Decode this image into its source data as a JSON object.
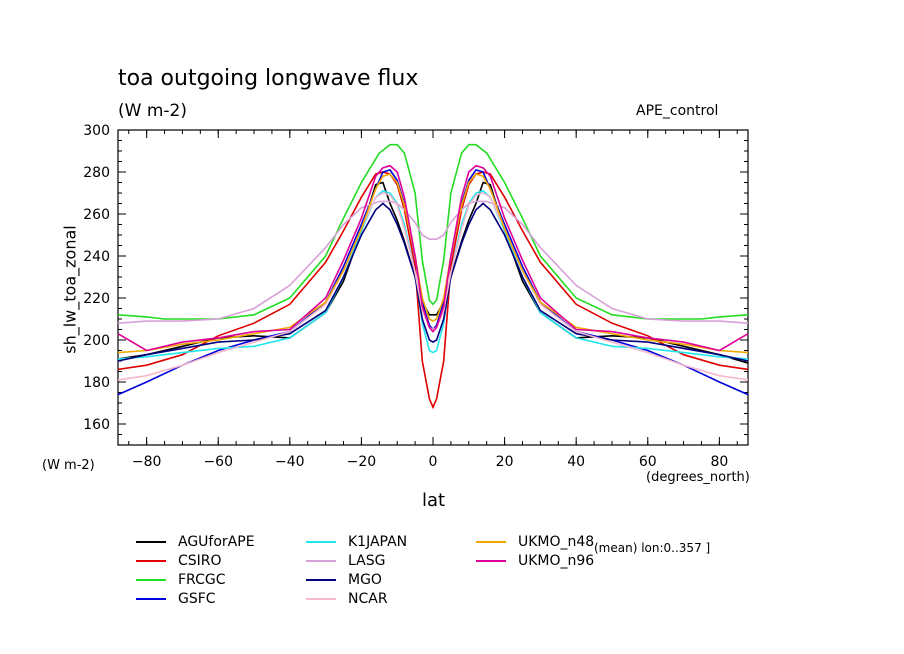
{
  "chart_data": {
    "type": "line",
    "title": "toa outgoing longwave flux",
    "subtitle": "(W m-2)",
    "run_label": "APE_control",
    "ylabel": "sh_lw_toa_zonal",
    "xlabel": "lat",
    "x_units": "(degrees_north)",
    "y_units_left": "(W m-2)",
    "note": "(mean) lon:0..357 ]",
    "xlim": [
      -88,
      88
    ],
    "ylim": [
      150,
      300
    ],
    "x_ticks": [
      -80,
      -60,
      -40,
      -20,
      0,
      20,
      40,
      60,
      80
    ],
    "y_ticks": [
      160,
      180,
      200,
      220,
      240,
      260,
      280,
      300
    ],
    "x_tick_labels": [
      "−80",
      "−60",
      "−40",
      "−20",
      "0",
      "20",
      "40",
      "60",
      "80"
    ],
    "y_tick_labels": [
      "160",
      "180",
      "200",
      "220",
      "240",
      "260",
      "280",
      "300"
    ],
    "grid": false,
    "legend_position": "bottom",
    "series": [
      {
        "name": "AGUforAPE",
        "color": "#000000",
        "x": [
          -88,
          -80,
          -70,
          -60,
          -50,
          -40,
          -30,
          -25,
          -20,
          -16,
          -14,
          -12,
          -10,
          -8,
          -5,
          -3,
          -1,
          0,
          1,
          3,
          5,
          8,
          10,
          12,
          14,
          16,
          20,
          25,
          30,
          40,
          50,
          60,
          70,
          80,
          88
        ],
        "y": [
          191,
          193,
          197,
          201,
          202,
          201,
          213,
          228,
          252,
          274,
          275,
          265,
          257,
          247,
          230,
          218,
          212,
          212,
          212,
          218,
          230,
          247,
          257,
          265,
          275,
          274,
          252,
          228,
          213,
          201,
          202,
          201,
          197,
          193,
          189
        ]
      },
      {
        "name": "CSIRO",
        "color": "#e00000",
        "x": [
          -88,
          -80,
          -70,
          -60,
          -50,
          -40,
          -30,
          -25,
          -20,
          -16,
          -14,
          -12,
          -10,
          -8,
          -5,
          -3,
          -1,
          0,
          1,
          3,
          5,
          8,
          10,
          12,
          14,
          16,
          20,
          25,
          30,
          40,
          50,
          60,
          70,
          80,
          88
        ],
        "y": [
          186,
          188,
          193,
          202,
          208,
          217,
          237,
          252,
          268,
          279,
          280,
          279,
          274,
          262,
          235,
          190,
          172,
          168,
          172,
          190,
          235,
          262,
          274,
          279,
          280,
          279,
          268,
          252,
          237,
          217,
          208,
          202,
          193,
          188,
          186
        ]
      },
      {
        "name": "FRCGC",
        "color": "#22dd22",
        "x": [
          -88,
          -80,
          -75,
          -70,
          -60,
          -50,
          -40,
          -30,
          -25,
          -20,
          -15,
          -12,
          -10,
          -8,
          -5,
          -3,
          -1,
          0,
          1,
          3,
          5,
          8,
          10,
          12,
          15,
          20,
          25,
          30,
          40,
          50,
          60,
          70,
          75,
          80,
          88
        ],
        "y": [
          212,
          211,
          210,
          210,
          210,
          212,
          220,
          240,
          258,
          275,
          289,
          293,
          293,
          289,
          270,
          238,
          219,
          217,
          219,
          238,
          270,
          289,
          293,
          293,
          289,
          275,
          258,
          240,
          220,
          212,
          210,
          210,
          210,
          211,
          212
        ]
      },
      {
        "name": "GSFC",
        "color": "#0000dd",
        "x": [
          -88,
          -80,
          -70,
          -60,
          -50,
          -40,
          -30,
          -25,
          -20,
          -16,
          -14,
          -12,
          -10,
          -8,
          -5,
          -3,
          -1,
          0,
          1,
          3,
          5,
          8,
          10,
          12,
          14,
          16,
          20,
          25,
          30,
          40,
          50,
          60,
          70,
          80,
          88
        ],
        "y": [
          174,
          180,
          188,
          195,
          200,
          204,
          218,
          235,
          255,
          272,
          280,
          281,
          276,
          265,
          240,
          218,
          207,
          205,
          207,
          218,
          240,
          265,
          276,
          281,
          280,
          272,
          255,
          235,
          218,
          204,
          200,
          195,
          188,
          180,
          174
        ]
      },
      {
        "name": "K1JAPAN",
        "color": "#22e6ee",
        "x": [
          -88,
          -80,
          -70,
          -60,
          -50,
          -40,
          -30,
          -25,
          -20,
          -16,
          -14,
          -12,
          -10,
          -8,
          -5,
          -3,
          -1,
          0,
          1,
          3,
          5,
          8,
          10,
          12,
          14,
          16,
          20,
          25,
          30,
          40,
          50,
          60,
          70,
          80,
          88
        ],
        "y": [
          191,
          192,
          194,
          196,
          197,
          201,
          213,
          230,
          252,
          268,
          271,
          270,
          265,
          255,
          232,
          208,
          195,
          194,
          195,
          208,
          232,
          255,
          265,
          270,
          271,
          268,
          252,
          230,
          213,
          201,
          197,
          196,
          194,
          192,
          191
        ]
      },
      {
        "name": "LASG",
        "color": "#d8a0d8",
        "x": [
          -88,
          -80,
          -70,
          -60,
          -50,
          -40,
          -30,
          -25,
          -20,
          -15,
          -12,
          -10,
          -8,
          -5,
          -3,
          -1,
          0,
          1,
          3,
          5,
          8,
          10,
          12,
          15,
          20,
          25,
          30,
          40,
          50,
          60,
          70,
          80,
          88
        ],
        "y": [
          208,
          209,
          209,
          210,
          215,
          226,
          244,
          255,
          263,
          266,
          266,
          265,
          262,
          256,
          250,
          248,
          248,
          248,
          250,
          256,
          262,
          265,
          266,
          266,
          263,
          255,
          244,
          226,
          215,
          210,
          209,
          209,
          208
        ]
      },
      {
        "name": "MGO",
        "color": "#000080",
        "x": [
          -88,
          -80,
          -70,
          -60,
          -50,
          -40,
          -30,
          -25,
          -20,
          -16,
          -14,
          -12,
          -10,
          -8,
          -5,
          -3,
          -1,
          0,
          1,
          3,
          5,
          8,
          10,
          12,
          14,
          16,
          20,
          25,
          30,
          40,
          50,
          60,
          70,
          80,
          88
        ],
        "y": [
          190,
          193,
          196,
          199,
          200,
          203,
          214,
          230,
          250,
          262,
          265,
          262,
          255,
          246,
          230,
          210,
          200,
          199,
          200,
          210,
          230,
          246,
          255,
          262,
          265,
          262,
          250,
          230,
          214,
          203,
          200,
          199,
          196,
          193,
          190
        ]
      },
      {
        "name": "NCAR",
        "color": "#f5b8cc",
        "x": [
          -88,
          -80,
          -70,
          -60,
          -50,
          -40,
          -30,
          -25,
          -20,
          -16,
          -14,
          -12,
          -10,
          -8,
          -5,
          -3,
          -1,
          0,
          1,
          3,
          5,
          8,
          10,
          12,
          14,
          16,
          20,
          25,
          30,
          40,
          50,
          60,
          70,
          80,
          88
        ],
        "y": [
          181,
          183,
          188,
          194,
          199,
          204,
          217,
          233,
          253,
          268,
          270,
          269,
          264,
          253,
          232,
          214,
          206,
          205,
          206,
          214,
          232,
          253,
          264,
          269,
          270,
          268,
          253,
          233,
          217,
          204,
          199,
          194,
          188,
          183,
          181
        ]
      },
      {
        "name": "UKMO_n48",
        "color": "#f0a800",
        "x": [
          -88,
          -80,
          -70,
          -60,
          -50,
          -40,
          -30,
          -25,
          -20,
          -16,
          -14,
          -12,
          -10,
          -8,
          -5,
          -3,
          -1,
          0,
          1,
          3,
          5,
          8,
          10,
          12,
          14,
          16,
          20,
          25,
          30,
          40,
          50,
          60,
          70,
          80,
          88
        ],
        "y": [
          194,
          195,
          198,
          200,
          203,
          206,
          218,
          233,
          253,
          272,
          278,
          279,
          275,
          264,
          240,
          220,
          210,
          209,
          210,
          220,
          240,
          264,
          275,
          279,
          278,
          272,
          253,
          233,
          218,
          206,
          203,
          200,
          198,
          195,
          194
        ]
      },
      {
        "name": "UKMO_n96",
        "color": "#e0009a",
        "x": [
          -88,
          -80,
          -70,
          -60,
          -50,
          -40,
          -30,
          -25,
          -20,
          -16,
          -14,
          -12,
          -10,
          -8,
          -5,
          -3,
          -1,
          0,
          1,
          3,
          5,
          8,
          10,
          12,
          14,
          16,
          20,
          25,
          30,
          40,
          50,
          60,
          70,
          80,
          88
        ],
        "y": [
          203,
          195,
          199,
          201,
          204,
          205,
          220,
          238,
          258,
          278,
          282,
          283,
          280,
          268,
          240,
          216,
          206,
          204,
          206,
          216,
          240,
          268,
          280,
          283,
          282,
          278,
          258,
          238,
          220,
          205,
          204,
          201,
          199,
          195,
          203
        ]
      }
    ]
  }
}
